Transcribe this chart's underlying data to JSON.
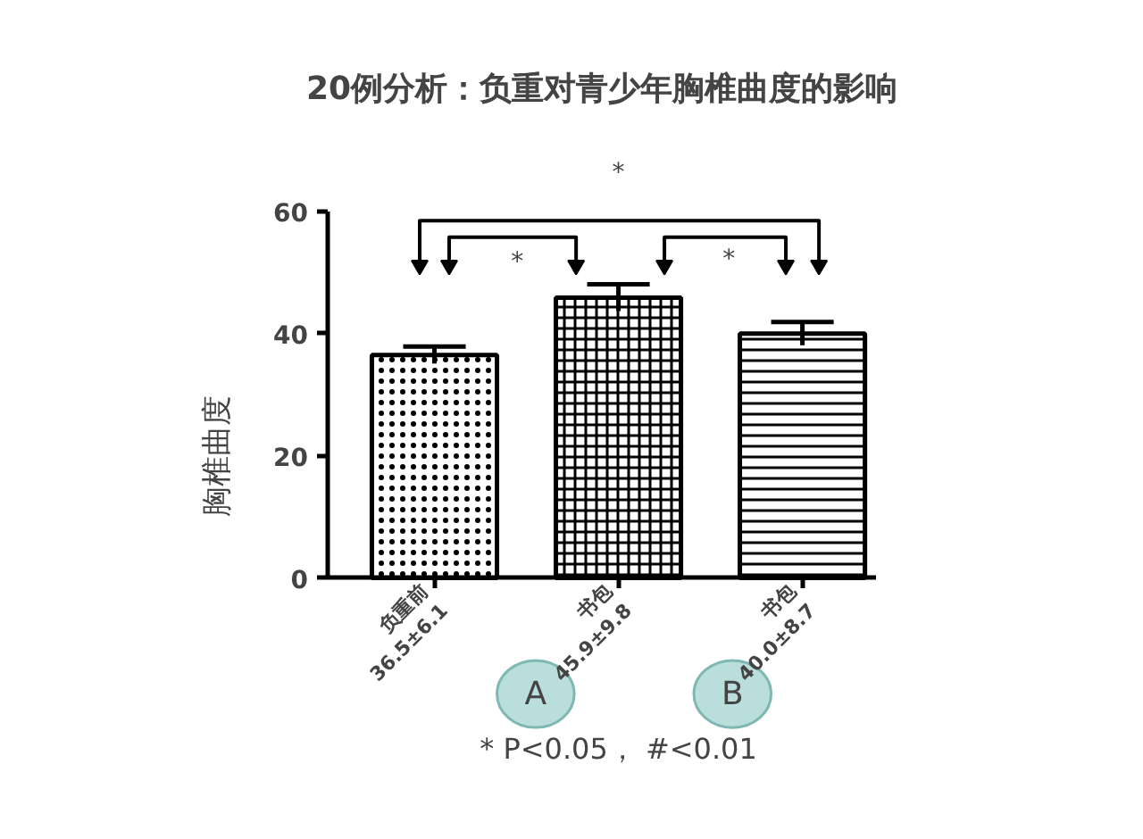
{
  "chart_data": {
    "type": "bar",
    "title": "20例分析：负重对青少年胸椎曲度的影响",
    "ylabel": "胸椎曲度",
    "categories": [
      "负重前\n36.5±6.1",
      "书包\n45.9±9.8",
      "书包\n40.0±8.7"
    ],
    "values": [
      36.5,
      45.9,
      40.0
    ],
    "errors": [
      1.4,
      2.2,
      1.9
    ],
    "colors": [
      "#000000",
      "#000000",
      "#000000"
    ],
    "ylim": [
      0,
      60
    ],
    "yticks": [
      0,
      20,
      40,
      60
    ],
    "grid": false,
    "annotations": [
      "*",
      "*",
      "*",
      "A",
      "B",
      "* P<0.05， #<0.01"
    ]
  }
}
